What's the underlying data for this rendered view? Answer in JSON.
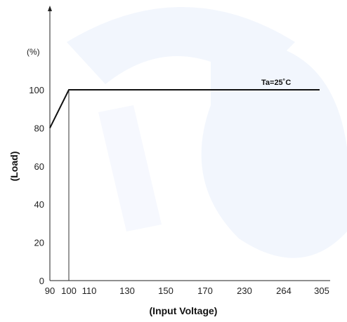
{
  "chart_data": {
    "type": "line",
    "title": "",
    "xlabel": "(Input Voltage)",
    "ylabel": "(Load)",
    "yunit": "(%)",
    "annotation": "Ta=25˚C",
    "x_categories": [
      "90",
      "100",
      "110",
      "130",
      "150",
      "170",
      "230",
      "264",
      "305"
    ],
    "y_ticks": [
      "0",
      "20",
      "40",
      "60",
      "80",
      "100"
    ],
    "ylim": [
      0,
      100
    ],
    "grid": false,
    "series": [
      {
        "x": [
          "90",
          "100",
          "110",
          "130",
          "150",
          "170",
          "230",
          "264",
          "305"
        ],
        "values": [
          80,
          100,
          100,
          100,
          100,
          100,
          100,
          100,
          100
        ]
      }
    ],
    "reference_line_x": "100"
  },
  "colors": {
    "line": "#111111",
    "axis": "#222222",
    "watermark": "#eef3fc"
  }
}
